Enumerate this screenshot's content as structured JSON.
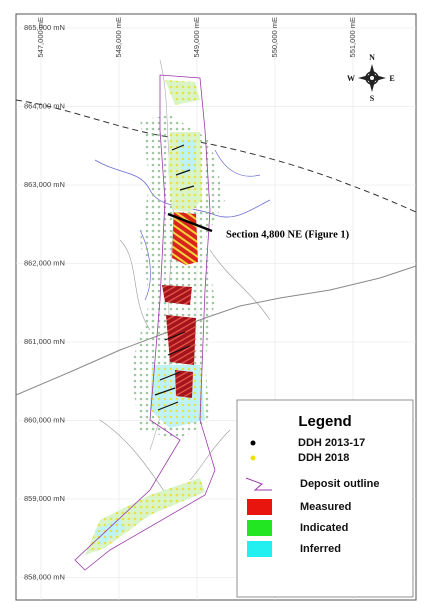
{
  "map": {
    "northings": [
      "865,000 mN",
      "864,000 mN",
      "863,000 mN",
      "862,000 mN",
      "861,000 mN",
      "860,000 mN",
      "859,000 mN",
      "858,000 mN"
    ],
    "eastings": [
      "547,000 mE",
      "548,000 mE",
      "549,000 mE",
      "550,000 mE",
      "551,000 mE"
    ],
    "compass": {
      "north": "N",
      "south": "S",
      "east": "E",
      "west": "W"
    },
    "annotation": "Section 4,800 NE (Figure 1)",
    "legend": {
      "title": "Legend",
      "items": [
        "DDH 2013-17",
        "DDH 2018",
        "Deposit outline",
        "Measured",
        "Indicated",
        "Inferred"
      ]
    }
  }
}
